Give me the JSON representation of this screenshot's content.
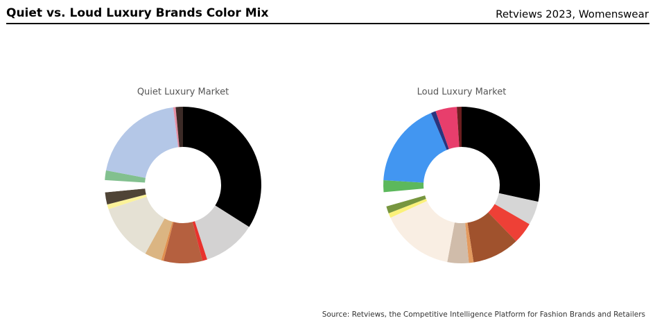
{
  "header": {
    "title": "Quiet vs. Loud Luxury Brands Color Mix",
    "subtitle": "Retviews 2023, Womenswear"
  },
  "source": "Source: Retviews, the Competitive Intelligence Platform for Fashion Brands and Retailers",
  "chart_data": [
    {
      "type": "pie",
      "title": "Quiet Luxury Market",
      "values": [
        34,
        11,
        1,
        8,
        0.5,
        3.5,
        12,
        1,
        2.5,
        2.5,
        2,
        20,
        0.5,
        1.5
      ],
      "colors": [
        "#000000",
        "#d3d2d2",
        "#e8322d",
        "#b5603f",
        "#e0904f",
        "#dbb582",
        "#e5e1d4",
        "#fbf29a",
        "#4f4436",
        "#ffffff",
        "#82c08f",
        "#b4c7e7",
        "#e58fa4",
        "#3b2a26"
      ]
    },
    {
      "type": "pie",
      "title": "Loud Luxury Market",
      "values": [
        29,
        5,
        4.5,
        10,
        1,
        4.5,
        15.5,
        1,
        1.5,
        3,
        2.5,
        18,
        1,
        4.5,
        1
      ],
      "colors": [
        "#000000",
        "#d6d6d6",
        "#ee4036",
        "#a0522d",
        "#e39a5f",
        "#d0bcaa",
        "#f9eee3",
        "#fbf17a",
        "#77963f",
        "#ffffff",
        "#5cb85c",
        "#4296f1",
        "#2a347e",
        "#e83e6c",
        "#6b1e20"
      ]
    }
  ]
}
